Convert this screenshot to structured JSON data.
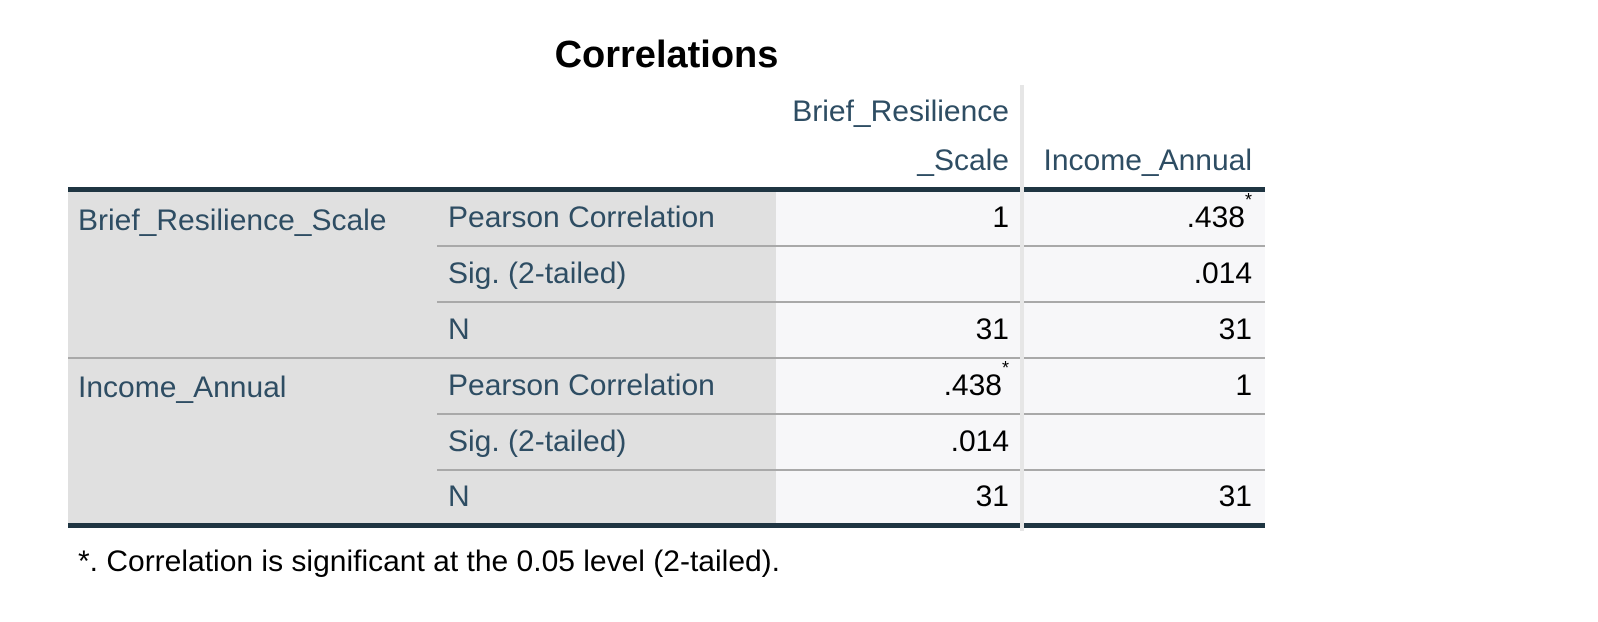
{
  "table": {
    "title": "Correlations",
    "col_headers": [
      {
        "line1": "Brief_Resilience",
        "line2": "_Scale"
      },
      {
        "line1": "Income_Annual",
        "line2": ""
      }
    ],
    "groups": [
      {
        "label": "Brief_Resilience_Scale",
        "rows": [
          {
            "stat": "Pearson Correlation",
            "c1": "1",
            "c1sup": "",
            "c2": ".438",
            "c2sup": "*"
          },
          {
            "stat": "Sig. (2-tailed)",
            "c1": "",
            "c1sup": "",
            "c2": ".014",
            "c2sup": ""
          },
          {
            "stat": "N",
            "c1": "31",
            "c1sup": "",
            "c2": "31",
            "c2sup": ""
          }
        ]
      },
      {
        "label": "Income_Annual",
        "rows": [
          {
            "stat": "Pearson Correlation",
            "c1": ".438",
            "c1sup": "*",
            "c2": "1",
            "c2sup": ""
          },
          {
            "stat": "Sig. (2-tailed)",
            "c1": ".014",
            "c1sup": "",
            "c2": "",
            "c2sup": ""
          },
          {
            "stat": "N",
            "c1": "31",
            "c1sup": "",
            "c2": "31",
            "c2sup": ""
          }
        ]
      }
    ],
    "footnote": "*. Correlation is significant at the 0.05 level (2-tailed)."
  },
  "colors": {
    "rule_dark": "#1f3542",
    "header_text": "#2e4d63",
    "stub_background": "#e0e0e0",
    "cell_background": "#f7f7f9",
    "separator_gray": "#a9a9a9",
    "column_divider": "#e6e6e6",
    "value_text": "#000000"
  },
  "chart_data": {
    "type": "table",
    "title": "Correlations",
    "row_variables": [
      "Brief_Resilience_Scale",
      "Income_Annual"
    ],
    "col_variables": [
      "Brief_Resilience_Scale",
      "Income_Annual"
    ],
    "statistics": [
      "Pearson Correlation",
      "Sig. (2-tailed)",
      "N"
    ],
    "values": {
      "Brief_Resilience_Scale": {
        "Pearson Correlation": [
          "1",
          ".438*"
        ],
        "Sig. (2-tailed)": [
          "",
          ".014"
        ],
        "N": [
          "31",
          "31"
        ]
      },
      "Income_Annual": {
        "Pearson Correlation": [
          ".438*",
          "1"
        ],
        "Sig. (2-tailed)": [
          ".014",
          ""
        ],
        "N": [
          "31",
          "31"
        ]
      }
    },
    "pearson_r": 0.438,
    "sig_2_tailed": 0.014,
    "n": 31,
    "footnote": "*. Correlation is significant at the 0.05 level (2-tailed)."
  }
}
